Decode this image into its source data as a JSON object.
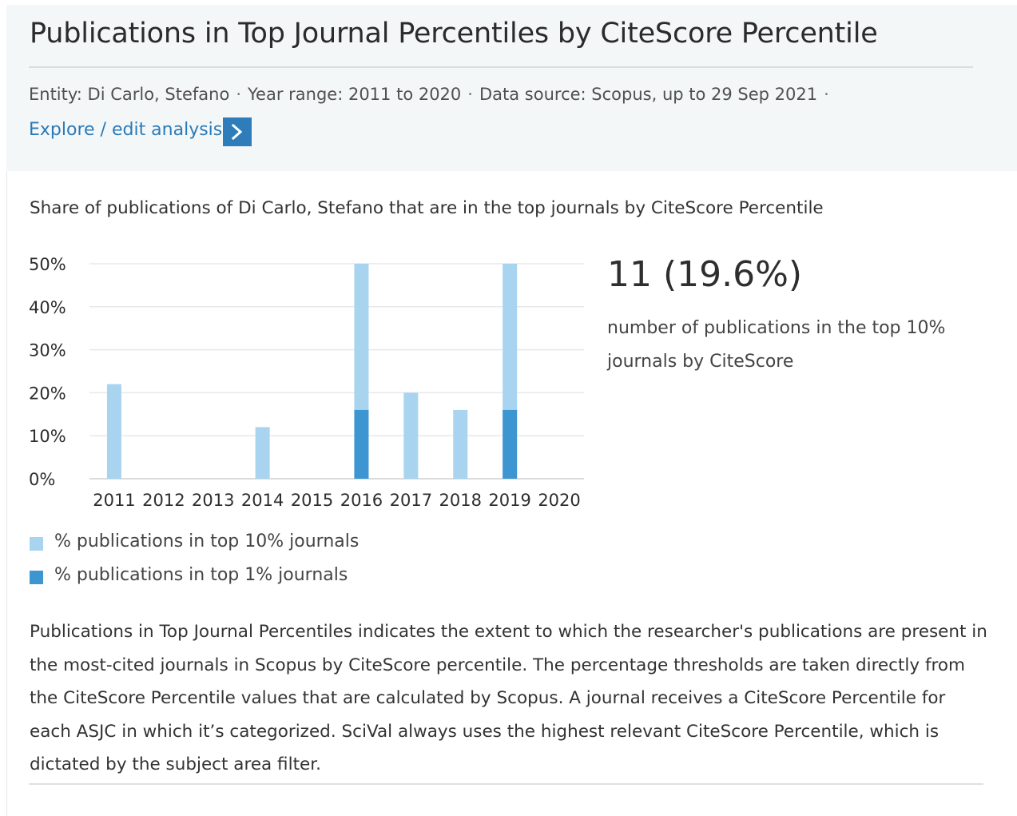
{
  "header": {
    "title": "Publications in Top Journal Percentiles by CiteScore Percentile",
    "meta": {
      "entity": "Entity: Di Carlo, Stefano",
      "year_range": "Year range: 2011 to 2020",
      "data_source": "Data source: Scopus, up to 29 Sep 2021",
      "separator": "·"
    },
    "explore_link": "Explore / edit analysis",
    "explore_icon": "chevron-right-icon"
  },
  "chart_data": {
    "type": "bar",
    "subtitle": "Share of publications of Di Carlo, Stefano that are in the top journals by CiteScore Percentile",
    "categories": [
      "2011",
      "2012",
      "2013",
      "2014",
      "2015",
      "2016",
      "2017",
      "2018",
      "2019",
      "2020"
    ],
    "series": [
      {
        "name": "% publications in top 10% journals",
        "color": "#a8d4f0",
        "values": [
          22,
          0,
          0,
          12,
          0,
          50,
          20,
          16,
          50,
          0
        ]
      },
      {
        "name": "% publications in top 1% journals",
        "color": "#3d96d2",
        "values": [
          0,
          0,
          0,
          0,
          0,
          16,
          0,
          0,
          16,
          0
        ]
      }
    ],
    "y_ticks": [
      "0%",
      "10%",
      "20%",
      "30%",
      "40%",
      "50%"
    ],
    "ylim": [
      0,
      50
    ],
    "grid": true,
    "legend_position": "bottom-left",
    "overlay": true
  },
  "summary": {
    "value": "11 (19.6%)",
    "description": "number of publications in the top 10% journals by CiteScore"
  },
  "description": "Publications in Top Journal Percentiles indicates the extent to which the researcher's publications are present in the most-cited journals in Scopus by CiteScore percentile. The percentage thresholds are taken directly from the CiteScore Percentile values that are calculated by Scopus. A journal receives a CiteScore Percentile for each ASJC in which it’s categorized. SciVal always uses the highest relevant CiteScore Percentile, which is dictated by the subject area filter."
}
